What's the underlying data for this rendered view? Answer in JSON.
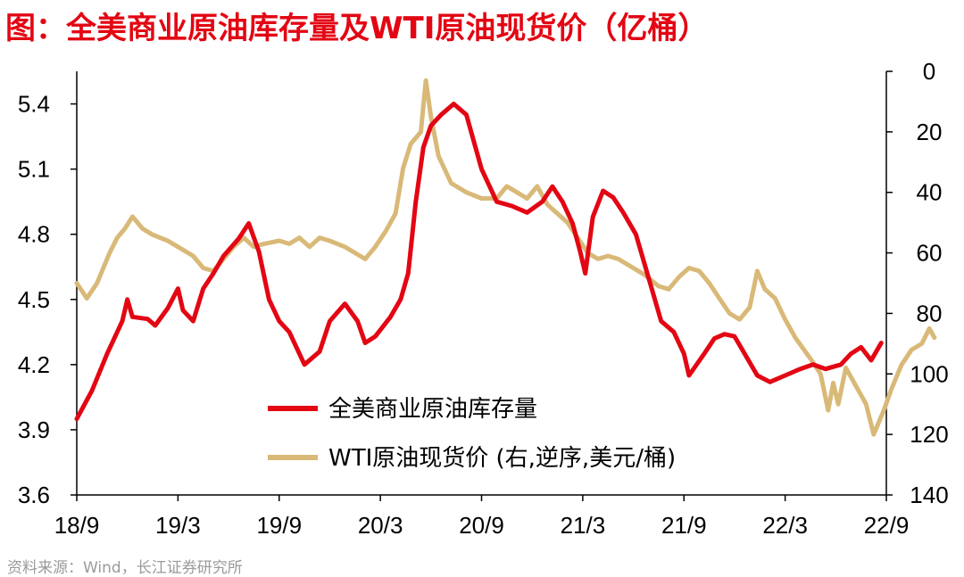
{
  "title": "图：全美商业原油库存量及WTI原油现货价（亿桶）",
  "source": "资料来源：Wind，长江证券研究所",
  "colors": {
    "title": "#e30613",
    "inventory": "#e30613",
    "wti": "#d9b978",
    "axis": "#000000",
    "source": "#9a9a9a"
  },
  "chart_data": {
    "type": "line",
    "x_ticks": [
      "18/9",
      "19/3",
      "19/9",
      "20/3",
      "20/9",
      "21/3",
      "21/9",
      "22/3",
      "22/9"
    ],
    "y_left": {
      "ticks": [
        "3.6",
        "3.9",
        "4.2",
        "4.5",
        "4.8",
        "5.1",
        "5.4"
      ],
      "min": 3.6,
      "max": 5.55
    },
    "y_right": {
      "ticks": [
        "0",
        "20",
        "40",
        "60",
        "80",
        "100",
        "120",
        "140"
      ],
      "min": 0,
      "max": 140,
      "inverted": true
    },
    "legend": {
      "placement": "center-bottom"
    },
    "series": [
      {
        "name": "全美商业原油库存量",
        "axis": "left",
        "points": [
          [
            0,
            3.95
          ],
          [
            0.3,
            4.08
          ],
          [
            0.6,
            4.25
          ],
          [
            0.9,
            4.4
          ],
          [
            1.0,
            4.5
          ],
          [
            1.1,
            4.42
          ],
          [
            1.4,
            4.41
          ],
          [
            1.55,
            4.38
          ],
          [
            1.8,
            4.46
          ],
          [
            2.0,
            4.55
          ],
          [
            2.1,
            4.45
          ],
          [
            2.3,
            4.4
          ],
          [
            2.5,
            4.55
          ],
          [
            2.7,
            4.62
          ],
          [
            2.9,
            4.7
          ],
          [
            3.2,
            4.78
          ],
          [
            3.4,
            4.85
          ],
          [
            3.6,
            4.72
          ],
          [
            3.8,
            4.5
          ],
          [
            4.0,
            4.4
          ],
          [
            4.2,
            4.35
          ],
          [
            4.5,
            4.2
          ],
          [
            4.8,
            4.26
          ],
          [
            5.0,
            4.4
          ],
          [
            5.3,
            4.48
          ],
          [
            5.55,
            4.4
          ],
          [
            5.7,
            4.3
          ],
          [
            5.9,
            4.33
          ],
          [
            6.2,
            4.42
          ],
          [
            6.4,
            4.5
          ],
          [
            6.55,
            4.62
          ],
          [
            6.7,
            4.95
          ],
          [
            6.85,
            5.2
          ],
          [
            7.0,
            5.3
          ],
          [
            7.2,
            5.35
          ],
          [
            7.45,
            5.4
          ],
          [
            7.7,
            5.35
          ],
          [
            8.0,
            5.1
          ],
          [
            8.3,
            4.95
          ],
          [
            8.6,
            4.93
          ],
          [
            8.9,
            4.9
          ],
          [
            9.2,
            4.95
          ],
          [
            9.4,
            5.02
          ],
          [
            9.6,
            4.95
          ],
          [
            9.8,
            4.85
          ],
          [
            9.95,
            4.72
          ],
          [
            10.05,
            4.62
          ],
          [
            10.2,
            4.88
          ],
          [
            10.4,
            5.0
          ],
          [
            10.6,
            4.97
          ],
          [
            10.8,
            4.9
          ],
          [
            11.05,
            4.8
          ],
          [
            11.3,
            4.6
          ],
          [
            11.55,
            4.4
          ],
          [
            11.8,
            4.35
          ],
          [
            12.0,
            4.25
          ],
          [
            12.1,
            4.15
          ],
          [
            12.4,
            4.25
          ],
          [
            12.6,
            4.32
          ],
          [
            12.8,
            4.34
          ],
          [
            13.0,
            4.33
          ],
          [
            13.2,
            4.25
          ],
          [
            13.45,
            4.15
          ],
          [
            13.7,
            4.12
          ],
          [
            14.0,
            4.15
          ],
          [
            14.3,
            4.18
          ],
          [
            14.55,
            4.2
          ],
          [
            14.8,
            4.18
          ],
          [
            15.1,
            4.2
          ],
          [
            15.3,
            4.25
          ],
          [
            15.5,
            4.28
          ],
          [
            15.7,
            4.22
          ],
          [
            15.9,
            4.3
          ]
        ]
      },
      {
        "name": "WTI原油现货价 (右,逆序,美元/桶)",
        "axis": "right",
        "points": [
          [
            0,
            70
          ],
          [
            0.2,
            75
          ],
          [
            0.4,
            70
          ],
          [
            0.65,
            60
          ],
          [
            0.8,
            55
          ],
          [
            0.95,
            52
          ],
          [
            1.1,
            48
          ],
          [
            1.3,
            52
          ],
          [
            1.5,
            54
          ],
          [
            1.8,
            56
          ],
          [
            2.0,
            58
          ],
          [
            2.3,
            61
          ],
          [
            2.5,
            65
          ],
          [
            2.7,
            66
          ],
          [
            2.9,
            62
          ],
          [
            3.1,
            58
          ],
          [
            3.3,
            55
          ],
          [
            3.5,
            58
          ],
          [
            3.7,
            57
          ],
          [
            4.0,
            56
          ],
          [
            4.2,
            57
          ],
          [
            4.4,
            55
          ],
          [
            4.6,
            58
          ],
          [
            4.8,
            55
          ],
          [
            5.0,
            56
          ],
          [
            5.3,
            58
          ],
          [
            5.5,
            60
          ],
          [
            5.7,
            62
          ],
          [
            5.9,
            58
          ],
          [
            6.1,
            53
          ],
          [
            6.3,
            47
          ],
          [
            6.45,
            32
          ],
          [
            6.6,
            24
          ],
          [
            6.8,
            20
          ],
          [
            6.9,
            3
          ],
          [
            7.0,
            15
          ],
          [
            7.15,
            28
          ],
          [
            7.4,
            37
          ],
          [
            7.7,
            40
          ],
          [
            8.0,
            42
          ],
          [
            8.3,
            42
          ],
          [
            8.5,
            38
          ],
          [
            8.7,
            40
          ],
          [
            8.9,
            42
          ],
          [
            9.1,
            38
          ],
          [
            9.3,
            44
          ],
          [
            9.5,
            47
          ],
          [
            9.7,
            50
          ],
          [
            9.9,
            55
          ],
          [
            10.1,
            60
          ],
          [
            10.3,
            62
          ],
          [
            10.5,
            61
          ],
          [
            10.7,
            62
          ],
          [
            10.9,
            64
          ],
          [
            11.2,
            67
          ],
          [
            11.5,
            71
          ],
          [
            11.7,
            72
          ],
          [
            11.9,
            68
          ],
          [
            12.1,
            65
          ],
          [
            12.3,
            66
          ],
          [
            12.5,
            70
          ],
          [
            12.7,
            75
          ],
          [
            12.9,
            80
          ],
          [
            13.1,
            82
          ],
          [
            13.3,
            78
          ],
          [
            13.45,
            66
          ],
          [
            13.6,
            72
          ],
          [
            13.8,
            75
          ],
          [
            14.0,
            82
          ],
          [
            14.2,
            88
          ],
          [
            14.5,
            95
          ],
          [
            14.7,
            100
          ],
          [
            14.85,
            112
          ],
          [
            14.95,
            103
          ],
          [
            15.05,
            110
          ],
          [
            15.2,
            98
          ],
          [
            15.4,
            104
          ],
          [
            15.6,
            110
          ],
          [
            15.75,
            120
          ],
          [
            15.95,
            112
          ],
          [
            16.1,
            105
          ],
          [
            16.3,
            97
          ],
          [
            16.5,
            92
          ],
          [
            16.7,
            90
          ],
          [
            16.85,
            85
          ],
          [
            16.95,
            88
          ]
        ]
      }
    ]
  }
}
